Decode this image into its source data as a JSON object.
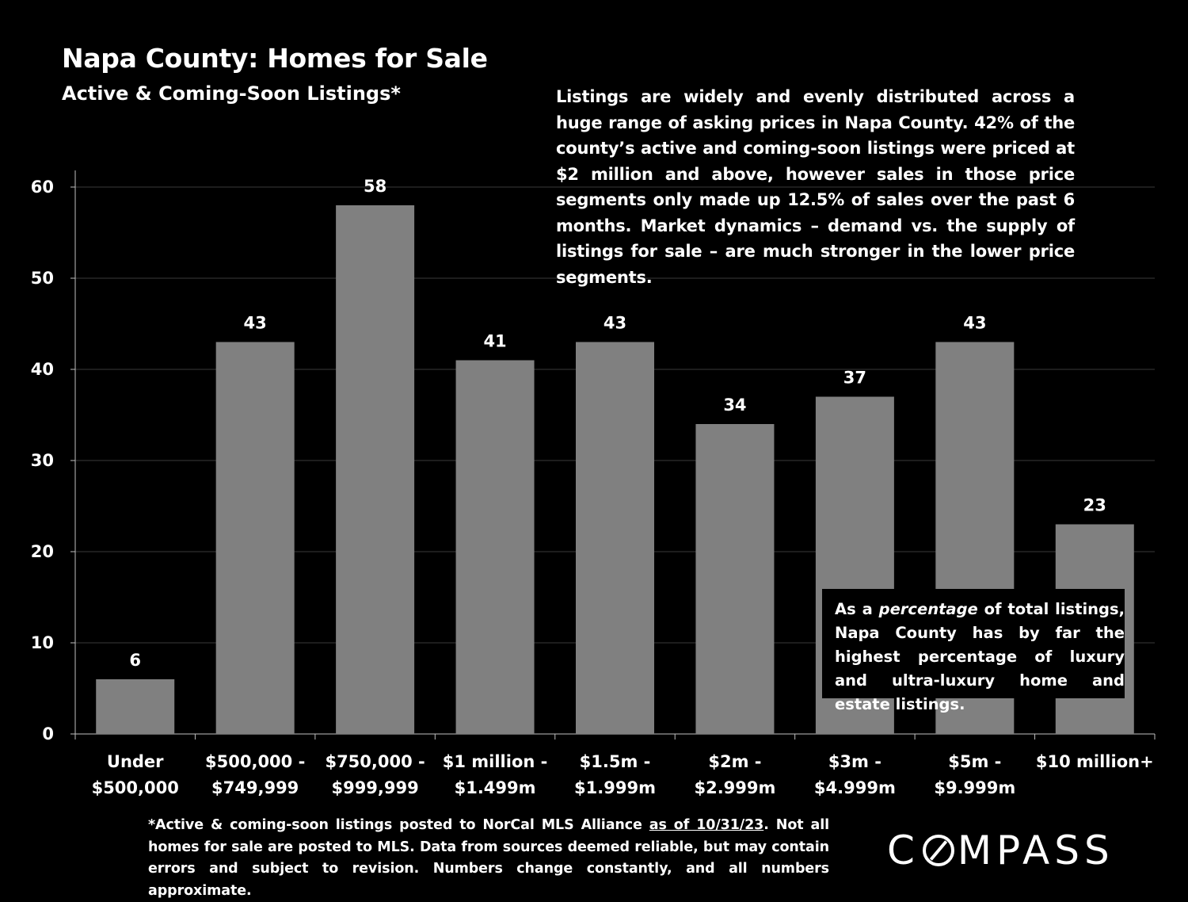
{
  "title": "Napa County: Homes for Sale",
  "subtitle": "Active & Coming-Soon Listings*",
  "commentary": "Listings are widely and evenly distributed across a huge range of asking prices in Napa County. 42% of the county’s active and coming-soon listings were priced at $2 million and above, however sales in those price segments only made up 12.5% of sales over the past 6 months. Market dynamics – demand vs. the supply of listings for sale – are much stronger in the lower price segments.",
  "callout": {
    "pre": "As a ",
    "emphasis": "percentage",
    "post": " of total listings, Napa County has by far the highest percentage of luxury and ultra-luxury home and estate listings."
  },
  "footnote": {
    "pre": "*Active & coming-soon listings posted to NorCal MLS Alliance ",
    "underlined": "as of 10/31/23",
    "post": ". Not all homes for sale are posted to MLS. Data from sources deemed reliable, but may contain errors and subject to revision. Numbers change constantly, and all numbers approximate."
  },
  "logo": {
    "pre": "C",
    "post": "MPASS"
  },
  "colors": {
    "background": "#000000",
    "bar": "#808080",
    "text": "#ffffff",
    "grid": "#3a3a3a"
  },
  "chart_data": {
    "type": "bar",
    "title": "Napa County: Homes for Sale",
    "xlabel": "",
    "ylabel": "",
    "ylim": [
      0,
      60
    ],
    "yticks": [
      0,
      10,
      20,
      30,
      40,
      50,
      60
    ],
    "grid": true,
    "categories": [
      [
        "Under",
        "$500,000"
      ],
      [
        "$500,000 -",
        "$749,999"
      ],
      [
        "$750,000 -",
        "$999,999"
      ],
      [
        "$1 million -",
        "$1.499m"
      ],
      [
        "$1.5m -",
        "$1.999m"
      ],
      [
        "$2m -",
        "$2.999m"
      ],
      [
        "$3m -",
        "$4.999m"
      ],
      [
        "$5m -",
        "$9.999m"
      ],
      [
        "$10 million+"
      ]
    ],
    "values": [
      6,
      43,
      58,
      41,
      43,
      34,
      37,
      43,
      23
    ]
  }
}
